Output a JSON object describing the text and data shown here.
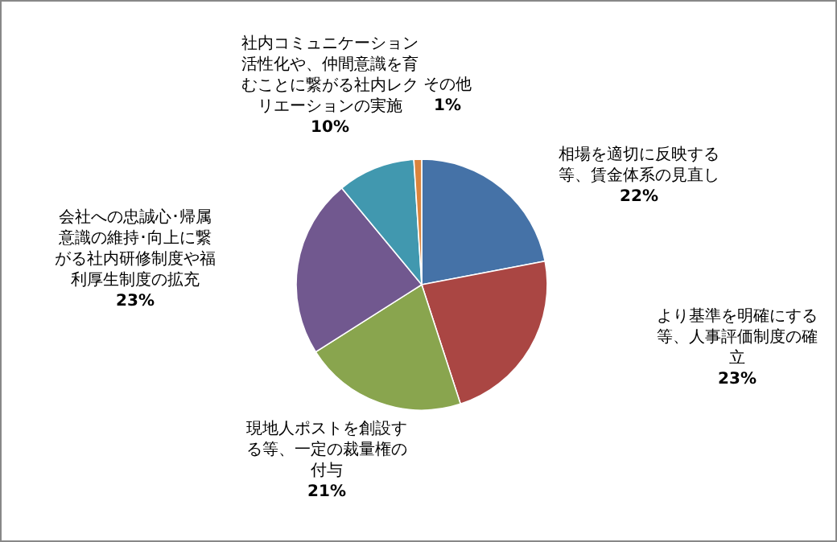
{
  "chart_data": {
    "type": "pie",
    "categories": [
      "相場を適切に反映する等、賃金体系の見直し",
      "より基準を明確にする等、人事評価制度の確立",
      "現地人ポストを創設する等、一定の裁量権の付与",
      "会社への忠誠心･帰属意識の維持･向上に繋がる社内研修制度や福利厚生制度の拡充",
      "社内コミュニケーション活性化や、仲間意識を育むことに繋がる社内レクリエーションの実施",
      "その他"
    ],
    "values": [
      22,
      23,
      21,
      23,
      10,
      1
    ],
    "colors": [
      "#4572a7",
      "#aa4643",
      "#89a54e",
      "#71588f",
      "#4198af",
      "#db843d"
    ],
    "value_labels": [
      "22%",
      "23%",
      "21%",
      "23%",
      "10%",
      "1%"
    ]
  }
}
